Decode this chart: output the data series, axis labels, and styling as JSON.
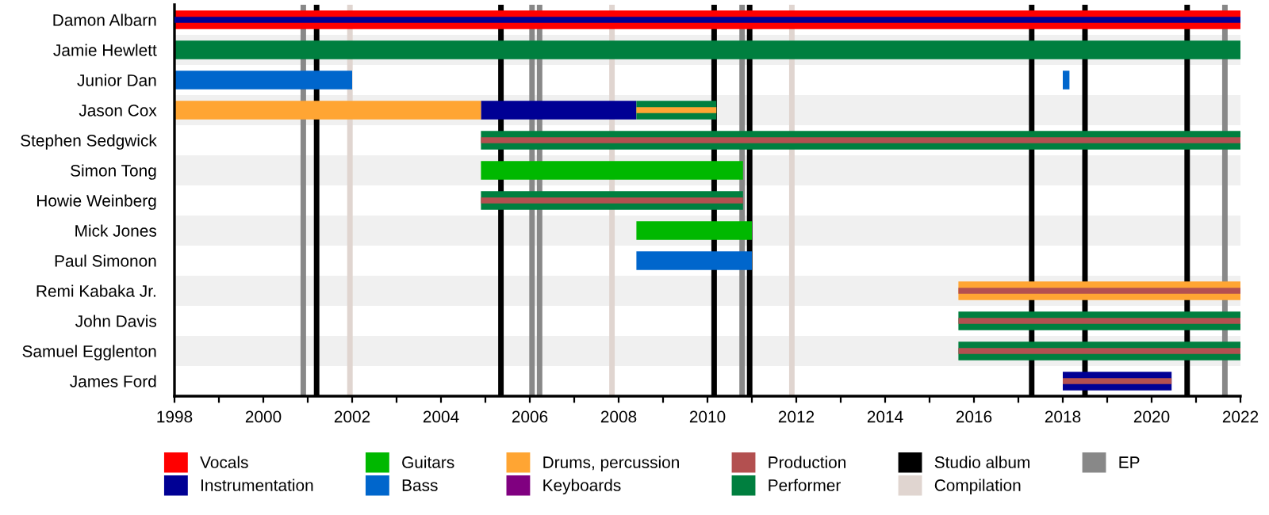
{
  "chart_data": {
    "type": "bar",
    "orientation": "horizontal",
    "categories": [
      "Damon Albarn",
      "Jamie Hewlett",
      "Junior Dan",
      "Jason Cox",
      "Stephen Sedgwick",
      "Simon Tong",
      "Howie Weinberg",
      "Mick Jones",
      "Paul Simonon",
      "Remi Kabaka Jr.",
      "John Davis",
      "Samuel Egglenton",
      "James Ford"
    ],
    "series": [
      {
        "name": "Vocals",
        "color": "#ff0000",
        "base": [
          1998,
          null,
          null,
          null,
          null,
          null,
          null,
          null,
          null,
          null,
          null,
          null,
          null
        ],
        "values": [
          24,
          null,
          null,
          null,
          null,
          null,
          null,
          null,
          null,
          null,
          null,
          null,
          null
        ]
      },
      {
        "name": "Instrumentation",
        "color": "#000094",
        "base": [
          1998,
          null,
          null,
          2004.9,
          null,
          null,
          null,
          null,
          null,
          null,
          null,
          null,
          2018
        ],
        "values": [
          24,
          null,
          null,
          3.5,
          null,
          null,
          null,
          null,
          null,
          null,
          null,
          null,
          2.45
        ]
      },
      {
        "name": "Guitars",
        "color": "#00b800",
        "base": [
          null,
          null,
          null,
          null,
          null,
          2004.9,
          null,
          2008.4,
          null,
          null,
          null,
          null,
          null
        ],
        "values": [
          null,
          null,
          null,
          null,
          null,
          5.9,
          null,
          2.6,
          null,
          null,
          null,
          null,
          null
        ]
      },
      {
        "name": "Bass",
        "color": "#0066cc",
        "base": [
          null,
          null,
          1998,
          null,
          null,
          null,
          null,
          null,
          2008.4,
          null,
          null,
          null,
          null
        ],
        "values": [
          null,
          null,
          4,
          null,
          null,
          null,
          null,
          null,
          2.6,
          null,
          null,
          null,
          null
        ]
      },
      {
        "name": "Drums, percussion",
        "color": "#ffa533",
        "base": [
          null,
          null,
          null,
          1998,
          null,
          null,
          null,
          null,
          null,
          2015.65,
          null,
          null,
          null
        ],
        "values": [
          null,
          null,
          null,
          6.9,
          null,
          null,
          null,
          null,
          null,
          6.35,
          null,
          null,
          null
        ]
      },
      {
        "name": "Keyboards",
        "color": "#800080",
        "base": [
          null,
          null,
          null,
          null,
          null,
          null,
          null,
          null,
          null,
          null,
          null,
          null,
          null
        ],
        "values": [
          null,
          null,
          null,
          null,
          null,
          null,
          null,
          null,
          null,
          null,
          null,
          null,
          null
        ]
      },
      {
        "color": "#007f3f",
        "base": [
          null,
          null,
          null,
          null,
          2004.9,
          null,
          2004.9,
          null,
          null,
          null,
          2015.65,
          2015.65,
          null
        ],
        "values": [
          null,
          null,
          null,
          null,
          17.1,
          null,
          5.9,
          null,
          null,
          null,
          6.35,
          6.35,
          null
        ]
      },
      {
        "name": "Production",
        "color": "#b35050",
        "base": [
          null,
          null,
          null,
          null,
          2004.9,
          null,
          2004.9,
          null,
          null,
          2015.65,
          2015.65,
          2015.65,
          2018
        ],
        "values": [
          null,
          null,
          null,
          null,
          17.1,
          null,
          5.9,
          null,
          null,
          6.35,
          6.35,
          6.35,
          2.45
        ]
      },
      {
        "name": "Performer",
        "color": "#007f3f",
        "base": [
          null,
          1998,
          null,
          2008.4,
          null,
          null,
          null,
          null,
          null,
          null,
          null,
          null,
          null
        ],
        "values": [
          null,
          24,
          null,
          1.8,
          null,
          null,
          null,
          null,
          null,
          null,
          null,
          null,
          null
        ]
      },
      {
        "color": "#ffa533",
        "base": [
          null,
          null,
          null,
          2008.4,
          null,
          null,
          null,
          null,
          null,
          null,
          null,
          null,
          null
        ],
        "values": [
          null,
          null,
          null,
          1.8,
          null,
          null,
          null,
          null,
          null,
          null,
          null,
          null,
          null
        ]
      },
      {
        "color": "#0066cc",
        "base": [
          null,
          null,
          2018,
          null,
          null,
          null,
          null,
          null,
          null,
          null,
          null,
          null,
          null
        ],
        "values": [
          null,
          null,
          0.15,
          null,
          null,
          null,
          null,
          null,
          null,
          null,
          null,
          null,
          null
        ]
      }
    ],
    "ref_lines": [
      {
        "axis": "x",
        "value": 2001.2,
        "label": "Studio album",
        "color": "#000000"
      },
      {
        "axis": "x",
        "value": 2005.35,
        "color": "#000000"
      },
      {
        "axis": "x",
        "value": 2010.15,
        "color": "#000000"
      },
      {
        "axis": "x",
        "value": 2010.95,
        "color": "#000000"
      },
      {
        "axis": "x",
        "value": 2017.3,
        "color": "#000000"
      },
      {
        "axis": "x",
        "value": 2018.5,
        "color": "#000000"
      },
      {
        "axis": "x",
        "value": 2020.8,
        "color": "#000000"
      },
      {
        "axis": "x",
        "value": 2001.95,
        "label": "Compilation",
        "color": "#e0d5d0"
      },
      {
        "axis": "x",
        "value": 2007.85,
        "color": "#e0d5d0"
      },
      {
        "axis": "x",
        "value": 2011.9,
        "color": "#e0d5d0"
      },
      {
        "axis": "x",
        "value": 2000.9,
        "label": "EP",
        "color": "#888888"
      },
      {
        "axis": "x",
        "value": 2006.05,
        "color": "#888888"
      },
      {
        "axis": "x",
        "value": 2006.22,
        "color": "#888888"
      },
      {
        "axis": "x",
        "value": 2010.78,
        "color": "#888888"
      },
      {
        "axis": "x",
        "value": 2021.65,
        "color": "#888888"
      }
    ],
    "xlim": [
      1998,
      2022
    ],
    "xticks": [
      1998,
      {
        "value": 1999,
        "label": null
      },
      2000,
      {
        "value": 2001,
        "label": null
      },
      2002,
      {
        "value": 2003,
        "label": null
      },
      2004,
      {
        "value": 2005,
        "label": null
      },
      2006,
      {
        "value": 2007,
        "label": null
      },
      2008,
      {
        "value": 2009,
        "label": null
      },
      2010,
      {
        "value": 2011,
        "label": null
      },
      2012,
      {
        "value": 2013,
        "label": null
      },
      2014,
      {
        "value": 2015,
        "label": null
      },
      2016,
      {
        "value": 2017,
        "label": null
      },
      2018,
      {
        "value": 2019,
        "label": null
      },
      2020,
      {
        "value": 2021,
        "label": null
      },
      2022
    ],
    "grid": false,
    "legend": "bottom"
  }
}
